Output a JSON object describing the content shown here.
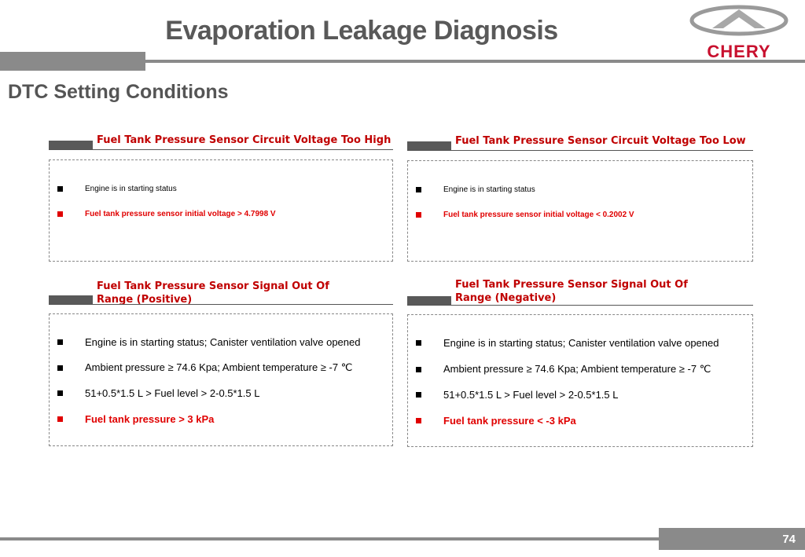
{
  "title": "Evaporation Leakage Diagnosis",
  "subtitle": "DTC Setting Conditions",
  "logo": {
    "text": "CHERY",
    "color": "#c8102e"
  },
  "panels": [
    {
      "title": "Fuel Tank Pressure Sensor Circuit Voltage Too High",
      "items": [
        {
          "text": "Engine is in starting status",
          "highlight": false
        },
        {
          "text": "Fuel tank pressure sensor initial voltage > 4.7998 V",
          "highlight": true
        }
      ]
    },
    {
      "title": "Fuel Tank Pressure Sensor Circuit Voltage Too Low",
      "items": [
        {
          "text": "Engine is in starting status",
          "highlight": false
        },
        {
          "text": "Fuel tank pressure sensor initial voltage < 0.2002 V",
          "highlight": true
        }
      ]
    },
    {
      "title": "Fuel Tank Pressure Sensor Signal Out Of Range (Positive)",
      "items": [
        {
          "text": "Engine is in starting status; Canister ventilation valve opened",
          "highlight": false
        },
        {
          "text": "Ambient pressure ≥ 74.6 Kpa; Ambient temperature ≥ -7 ℃",
          "highlight": false
        },
        {
          "text": "51+0.5*1.5 L > Fuel level > 2-0.5*1.5 L",
          "highlight": false
        },
        {
          "text": "Fuel tank pressure > 3 kPa",
          "highlight": true
        }
      ]
    },
    {
      "title": "Fuel Tank Pressure Sensor Signal Out Of Range (Negative)",
      "items": [
        {
          "text": "Engine is in starting status; Canister ventilation valve opened",
          "highlight": false
        },
        {
          "text": "Ambient pressure ≥ 74.6 Kpa; Ambient temperature ≥ -7 ℃",
          "highlight": false
        },
        {
          "text": "51+0.5*1.5 L > Fuel level > 2-0.5*1.5 L",
          "highlight": false
        },
        {
          "text": "Fuel tank pressure < -3 kPa",
          "highlight": true
        }
      ]
    }
  ],
  "page_number": "74"
}
